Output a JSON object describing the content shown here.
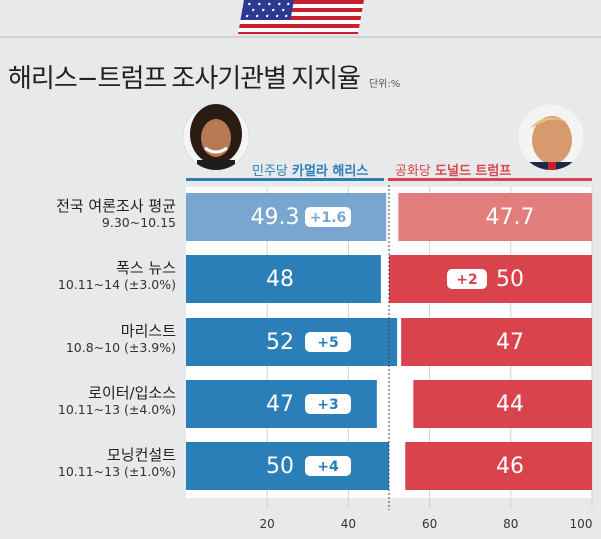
{
  "header": {
    "title_normal_1": "해리스−트럼프",
    "title_normal_2": "조사기관별",
    "title_bold": "지지율",
    "unit": "단위:%"
  },
  "candidates": {
    "dem_party": "민주당",
    "dem_name": "카멀라 해리스",
    "rep_party": "공화당",
    "rep_name": "도널드 트럼프"
  },
  "colors": {
    "dem": "#2b7fb8",
    "dem_avg": "#78a6cf",
    "rep": "#d9434b",
    "rep_avg": "#e17d7a"
  },
  "chart_data": {
    "type": "bar",
    "title": "해리스−트럼프 조사기관별 지지율",
    "unit": "단위:%",
    "xlim": [
      0,
      100
    ],
    "xticks": [
      20,
      40,
      60,
      80,
      100
    ],
    "categories": [
      "전국 여론조사 평균",
      "폭스 뉴스",
      "마리스트",
      "로이터/입소스",
      "모닝컨설트"
    ],
    "category_subtitles": [
      "9.30~10.15",
      "10.11~14 (±3.0%)",
      "10.8~10 (±3.9%)",
      "10.11~13 (±4.0%)",
      "10.11~13 (±1.0%)"
    ],
    "series": [
      {
        "name": "민주당 카멀라 해리스",
        "values": [
          49.3,
          48,
          52,
          47,
          50
        ],
        "value_labels": [
          "49.3",
          "48",
          "52",
          "47",
          "50"
        ],
        "lead_labels": [
          "+1.6",
          "",
          "+5",
          "+3",
          "+4"
        ]
      },
      {
        "name": "공화당 도널드 트럼프",
        "values": [
          47.7,
          50,
          47,
          44,
          46
        ],
        "value_labels": [
          "47.7",
          "50",
          "47",
          "44",
          "46"
        ],
        "lead_labels": [
          "",
          "+2",
          "",
          "",
          ""
        ]
      }
    ]
  }
}
